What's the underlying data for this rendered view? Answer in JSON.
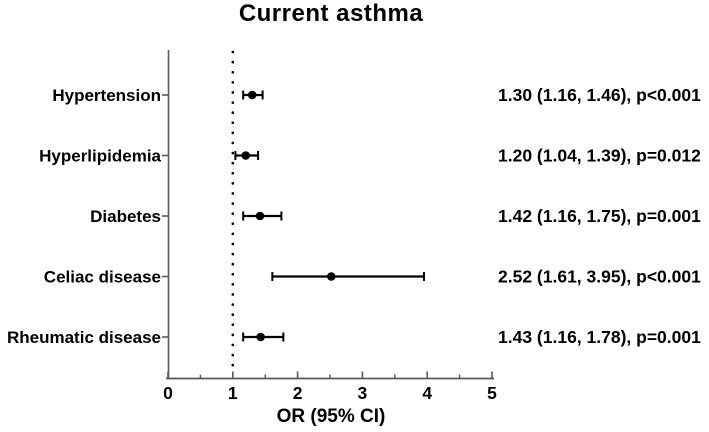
{
  "chart_data": {
    "type": "forest",
    "title": "Current asthma",
    "xlabel": "OR (95% CI)",
    "xlim": [
      0,
      5
    ],
    "x_major_ticks": [
      0,
      1,
      2,
      3,
      4,
      5
    ],
    "x_minor_ticks": [
      0.5,
      1.5,
      2.5,
      3.5,
      4.5
    ],
    "reference_line_x": 1,
    "grid": "off",
    "rows": [
      {
        "label": "Hypertension",
        "or": 1.3,
        "ci_low": 1.16,
        "ci_high": 1.46,
        "p": "p<0.001",
        "annotation": "1.30 (1.16, 1.46), p<0.001"
      },
      {
        "label": "Hyperlipidemia",
        "or": 1.2,
        "ci_low": 1.04,
        "ci_high": 1.39,
        "p": "p=0.012",
        "annotation": "1.20 (1.04, 1.39), p=0.012"
      },
      {
        "label": "Diabetes",
        "or": 1.42,
        "ci_low": 1.16,
        "ci_high": 1.75,
        "p": "p=0.001",
        "annotation": "1.42 (1.16, 1.75), p=0.001"
      },
      {
        "label": "Celiac disease",
        "or": 2.52,
        "ci_low": 1.61,
        "ci_high": 3.95,
        "p": "p<0.001",
        "annotation": "2.52 (1.61, 3.95), p<0.001"
      },
      {
        "label": "Rheumatic disease",
        "or": 1.43,
        "ci_low": 1.16,
        "ci_high": 1.78,
        "p": "p=0.001",
        "annotation": "1.43 (1.16, 1.78), p=0.001"
      }
    ],
    "colors": {
      "background": "#ffffff",
      "axis": "#595959",
      "data": "#000000",
      "text": "#000000"
    }
  }
}
